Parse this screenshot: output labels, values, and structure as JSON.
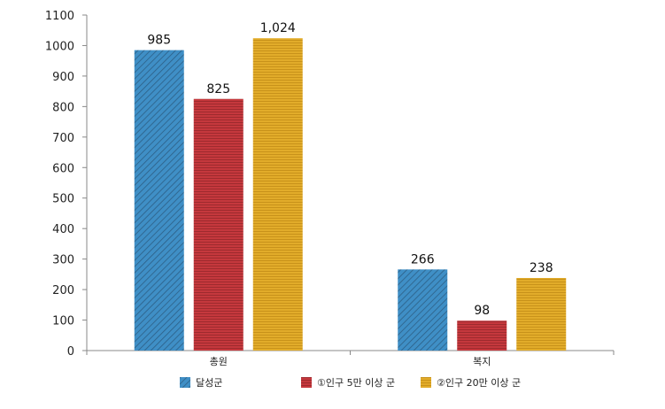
{
  "chart_data": {
    "type": "bar",
    "categories": [
      "총원",
      "복지"
    ],
    "series": [
      {
        "name": "달성군",
        "values": [
          985,
          266
        ],
        "labels": [
          "985",
          "266"
        ],
        "color": "#3f8fc6",
        "pattern": "diagonal"
      },
      {
        "name": "①인구 5만 이상 군",
        "values": [
          825,
          98
        ],
        "labels": [
          "825",
          "98"
        ],
        "color": "#c5383d",
        "pattern": "horizontal"
      },
      {
        "name": "②인구 20만 이상 군",
        "values": [
          1024,
          238
        ],
        "labels": [
          "1,024",
          "238"
        ],
        "color": "#e2ac2a",
        "pattern": "horizontal"
      }
    ],
    "ylim": [
      0,
      1100
    ],
    "yticks": [
      "0",
      "100",
      "200",
      "300",
      "400",
      "500",
      "600",
      "700",
      "800",
      "900",
      "1000",
      "1100"
    ],
    "legend_position": "bottom",
    "grid": false
  }
}
